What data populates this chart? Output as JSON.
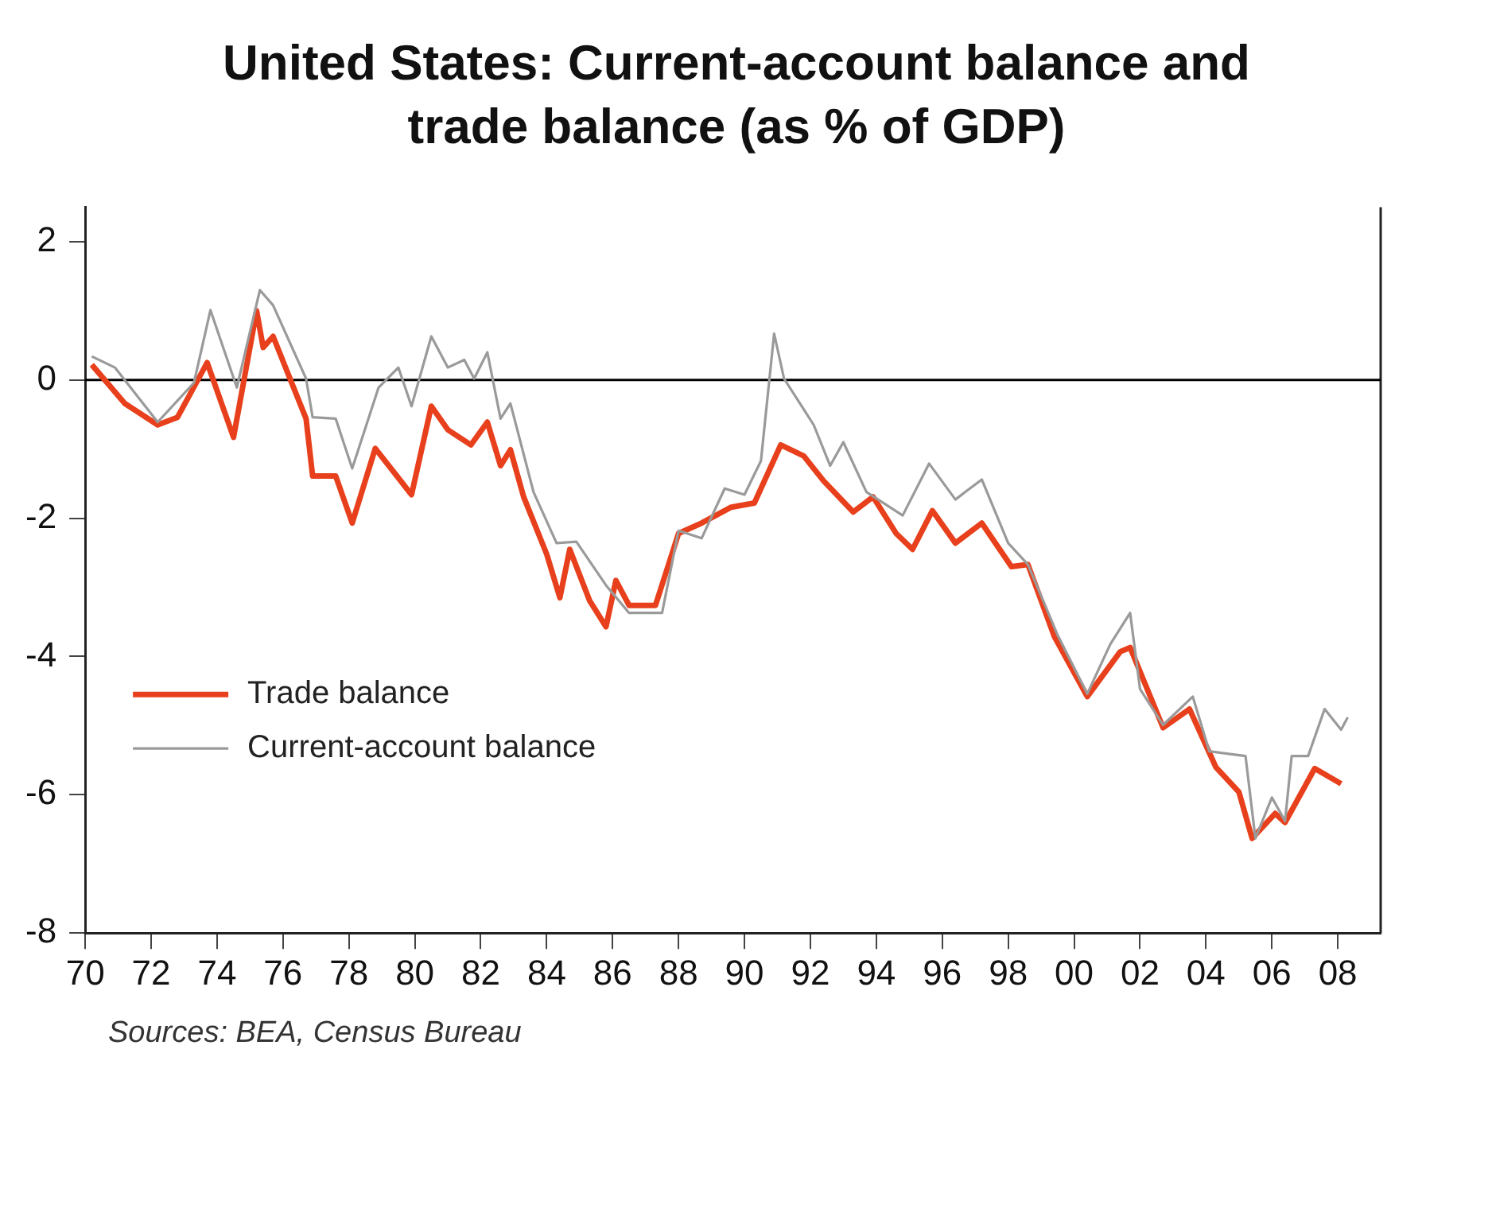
{
  "chart_data": {
    "type": "line",
    "title": "United States: Current-account balance and trade balance (as % of GDP)",
    "annotations": [
      "Sources: BEA, Census Bureau"
    ],
    "series": [
      {
        "name": "Trade balance",
        "color": "#e8401c",
        "x": [
          1970.2,
          1971.2,
          1972.2,
          1972.8,
          1973.7,
          1974.5,
          1975.2,
          1975.4,
          1975.7,
          1976.7,
          1976.9,
          1977.6,
          1978.1,
          1978.8,
          1979.9,
          1980.5,
          1981.0,
          1981.7,
          1982.2,
          1982.6,
          1982.9,
          1983.3,
          1984.0,
          1984.4,
          1984.7,
          1985.3,
          1985.8,
          1986.1,
          1986.5,
          1987.3,
          1988.0,
          1988.7,
          1989.6,
          1990.3,
          1991.1,
          1991.8,
          1992.4,
          1993.3,
          1993.9,
          1994.6,
          1995.1,
          1995.7,
          1996.4,
          1997.2,
          1998.1,
          1998.6,
          1999.4,
          2000.4,
          2001.4,
          2001.7,
          2002.7,
          2003.5,
          2004.3,
          2005.0,
          2005.4,
          2006.1,
          2006.4,
          2007.3,
          2008.1
        ],
        "values": [
          0.22,
          -0.34,
          -0.65,
          -0.54,
          0.25,
          -0.83,
          1.0,
          0.47,
          0.63,
          -0.56,
          -1.39,
          -1.39,
          -2.07,
          -0.99,
          -1.66,
          -0.38,
          -0.72,
          -0.94,
          -0.61,
          -1.24,
          -1.01,
          -1.69,
          -2.52,
          -3.15,
          -2.45,
          -3.19,
          -3.57,
          -2.9,
          -3.26,
          -3.26,
          -2.22,
          -2.07,
          -1.84,
          -1.78,
          -0.94,
          -1.1,
          -1.46,
          -1.91,
          -1.69,
          -2.22,
          -2.45,
          -1.89,
          -2.36,
          -2.07,
          -2.7,
          -2.67,
          -3.71,
          -4.58,
          -3.93,
          -3.87,
          -5.03,
          -4.76,
          -5.6,
          -5.96,
          -6.63,
          -6.27,
          -6.4,
          -5.62,
          -5.84
        ]
      },
      {
        "name": "Current-account balance",
        "color": "#9a9a9a",
        "x": [
          1970.2,
          1970.9,
          1972.2,
          1973.3,
          1973.8,
          1974.6,
          1975.3,
          1975.7,
          1976.7,
          1976.9,
          1977.6,
          1978.1,
          1978.9,
          1979.5,
          1979.9,
          1980.5,
          1981.0,
          1981.5,
          1981.8,
          1982.2,
          1982.6,
          1982.9,
          1983.6,
          1984.3,
          1984.9,
          1985.8,
          1986.5,
          1987.5,
          1988.0,
          1988.7,
          1989.4,
          1990.0,
          1990.5,
          1990.9,
          1991.2,
          1992.1,
          1992.6,
          1993.0,
          1993.7,
          1994.8,
          1995.6,
          1996.4,
          1996.7,
          1997.2,
          1998.0,
          1998.6,
          1999.5,
          2000.4,
          2001.1,
          2001.7,
          2002.0,
          2002.7,
          2003.6,
          2004.1,
          2005.2,
          2005.5,
          2006.0,
          2006.4,
          2006.6,
          2007.1,
          2007.6,
          2008.1,
          2008.3
        ],
        "values": [
          0.34,
          0.18,
          -0.61,
          -0.04,
          1.01,
          -0.11,
          1.3,
          1.08,
          0.02,
          -0.54,
          -0.56,
          -1.28,
          -0.11,
          0.18,
          -0.38,
          0.63,
          0.18,
          0.29,
          0.02,
          0.4,
          -0.56,
          -0.34,
          -1.62,
          -2.36,
          -2.34,
          -2.97,
          -3.37,
          -3.37,
          -2.18,
          -2.29,
          -1.57,
          -1.66,
          -1.17,
          0.67,
          0.02,
          -0.65,
          -1.24,
          -0.9,
          -1.62,
          -1.96,
          -1.21,
          -1.73,
          -1.62,
          -1.44,
          -2.36,
          -2.67,
          -3.69,
          -4.54,
          -3.82,
          -3.37,
          -4.47,
          -4.99,
          -4.58,
          -5.37,
          -5.44,
          -6.63,
          -6.04,
          -6.38,
          -5.44,
          -5.44,
          -4.76,
          -5.06,
          -4.88
        ]
      }
    ],
    "xlim": [
      1970,
      2009.3
    ],
    "xticks": [
      {
        "value": 1970,
        "label": "70"
      },
      {
        "value": 1972,
        "label": "72"
      },
      {
        "value": 1974,
        "label": "74"
      },
      {
        "value": 1976,
        "label": "76"
      },
      {
        "value": 1978,
        "label": "78"
      },
      {
        "value": 1980,
        "label": "80"
      },
      {
        "value": 1982,
        "label": "82"
      },
      {
        "value": 1984,
        "label": "84"
      },
      {
        "value": 1986,
        "label": "86"
      },
      {
        "value": 1988,
        "label": "88"
      },
      {
        "value": 1990,
        "label": "90"
      },
      {
        "value": 1992,
        "label": "92"
      },
      {
        "value": 1994,
        "label": "94"
      },
      {
        "value": 1996,
        "label": "96"
      },
      {
        "value": 1998,
        "label": "98"
      },
      {
        "value": 2000,
        "label": "00"
      },
      {
        "value": 2002,
        "label": "02"
      },
      {
        "value": 2004,
        "label": "04"
      },
      {
        "value": 2006,
        "label": "06"
      },
      {
        "value": 2008,
        "label": "08"
      }
    ],
    "ylim": [
      -8,
      2.5
    ],
    "yticks": [
      -8,
      -6,
      -4,
      -2,
      0,
      2
    ],
    "ref_lines": [
      {
        "axis": "y",
        "value": 0,
        "color": "#000000"
      }
    ],
    "legend": "bottom left",
    "grid": false,
    "marker": "none",
    "line_style": "solid"
  }
}
